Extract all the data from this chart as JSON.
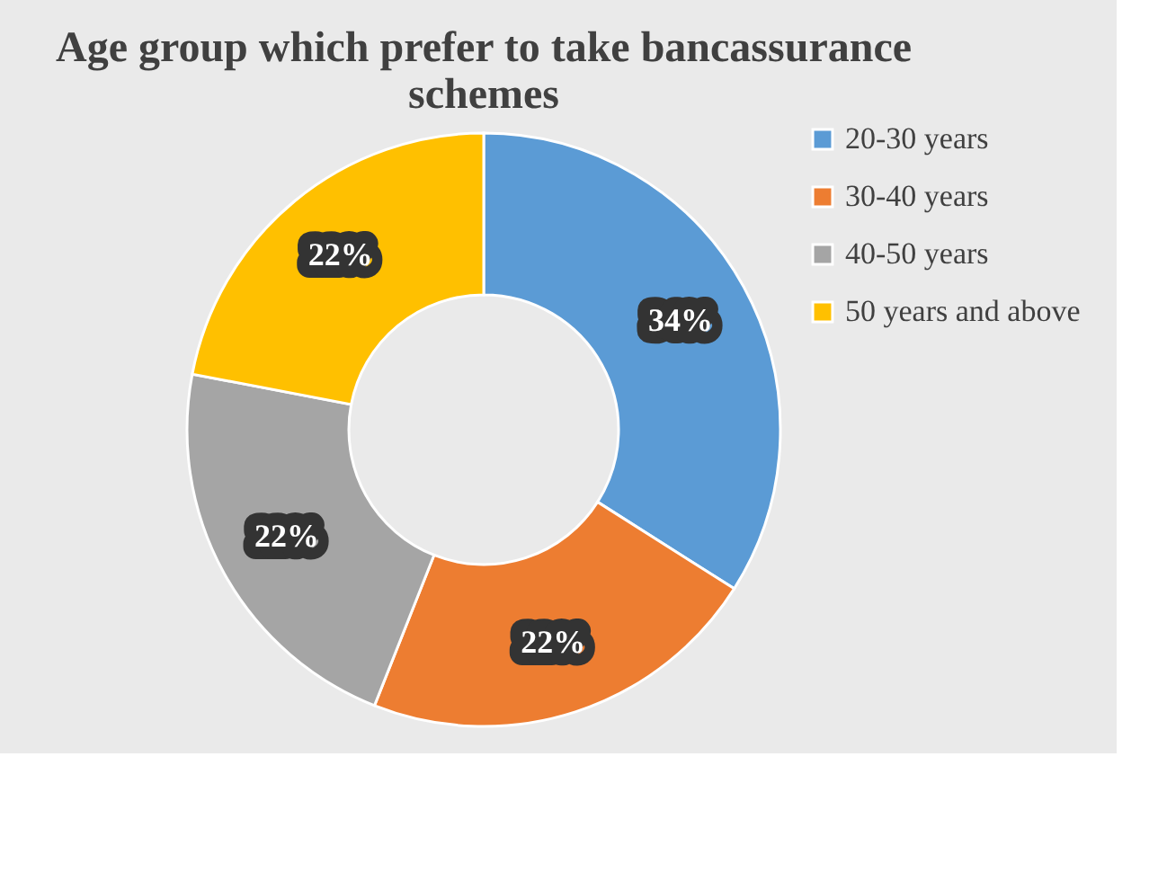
{
  "chart_data": {
    "type": "donut",
    "title": "Age group which prefer to take bancassurance schemes",
    "categories": [
      "20-30 years",
      "30-40 years",
      "40-50 years",
      "50 years and above"
    ],
    "values": [
      34,
      22,
      22,
      22
    ],
    "colors": [
      "#5b9bd5",
      "#ed7d31",
      "#a5a5a5",
      "#ffc000"
    ],
    "value_labels": [
      "34%",
      "22%",
      "22%",
      "22%"
    ],
    "legend": "right"
  }
}
